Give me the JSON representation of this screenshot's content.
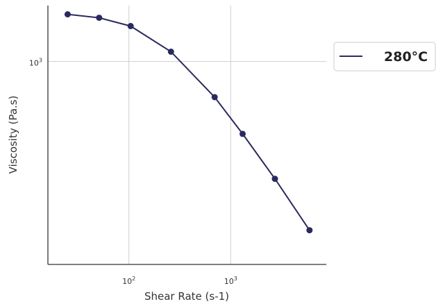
{
  "chart_data": {
    "type": "line",
    "xlabel": "Shear Rate (s-1)",
    "ylabel": "Viscosity (Pa.s)",
    "xscale": "log",
    "yscale": "log",
    "xlim": [
      16,
      8700
    ],
    "ylim": [
      140,
      1720
    ],
    "xticks": [
      {
        "value": 100,
        "base": "10",
        "exp": "2"
      },
      {
        "value": 1000,
        "base": "10",
        "exp": "3"
      }
    ],
    "yticks": [
      {
        "value": 1000,
        "base": "10",
        "exp": "3"
      }
    ],
    "grid": true,
    "legend_position": "right",
    "series": [
      {
        "name": "280°C",
        "color": "#2b2a5e",
        "x": [
          25,
          51,
          104,
          259,
          696,
          1310,
          2720,
          5950
        ],
        "y": [
          1580,
          1528,
          1410,
          1100,
          708,
          496,
          321,
          195
        ]
      }
    ]
  }
}
